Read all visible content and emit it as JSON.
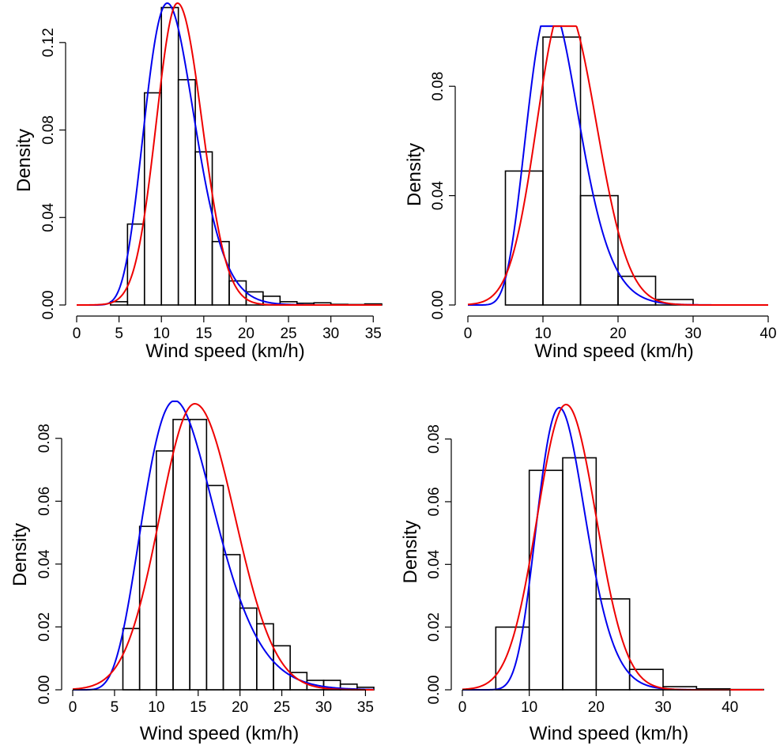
{
  "colors": {
    "curve_blue": "#0000ee",
    "curve_red": "#ee0000",
    "bars": "#000000"
  },
  "chart_data": [
    {
      "type": "bar",
      "xlabel": "Wind speed (km/h)",
      "ylabel": "Density",
      "xlim": [
        0,
        36
      ],
      "ylim": [
        0,
        0.138
      ],
      "xticks": [
        0,
        5,
        10,
        15,
        20,
        25,
        30,
        35
      ],
      "yticks": [
        0.0,
        0.04,
        0.08,
        0.12
      ],
      "ytick_labels": [
        "0.00",
        "0.04",
        "0.08",
        "0.12"
      ],
      "bin_edges": [
        4,
        6,
        8,
        10,
        12,
        14,
        16,
        18,
        20,
        22,
        24,
        26,
        28,
        30,
        32,
        34,
        36
      ],
      "values": [
        0.0015,
        0.037,
        0.097,
        0.136,
        0.103,
        0.07,
        0.029,
        0.011,
        0.006,
        0.004,
        0.0015,
        0.0008,
        0.001,
        0.0003,
        0.0002,
        0.0005
      ],
      "series": [
        {
          "name": "",
          "color": "#0000ee",
          "dist": "gamma",
          "mode": 10.7,
          "peak": 0.138,
          "shape": 14
        },
        {
          "name": "",
          "color": "#ee0000",
          "dist": "normal",
          "mode": 11.9,
          "peak": 0.138,
          "sd_left": 2.5,
          "sd_right": 2.9
        }
      ]
    },
    {
      "type": "bar",
      "xlabel": "Wind speed (km/h)",
      "ylabel": "Density",
      "xlim": [
        0,
        40
      ],
      "ylim": [
        0,
        0.1
      ],
      "xticks": [
        0,
        10,
        20,
        30,
        40
      ],
      "yticks": [
        0.0,
        0.04,
        0.08
      ],
      "ytick_labels": [
        "0.00",
        "0.04",
        "0.08"
      ],
      "bin_edges": [
        5,
        10,
        15,
        20,
        25,
        30
      ],
      "values": [
        0.049,
        0.098,
        0.04,
        0.0105,
        0.002
      ],
      "series": [
        {
          "name": "",
          "color": "#0000ee",
          "dist": "gamma",
          "mode": 11.0,
          "peak": 0.11,
          "shape": 11
        },
        {
          "name": "",
          "color": "#ee0000",
          "dist": "normal",
          "mode": 12.8,
          "peak": 0.11,
          "sd_left": 3.6,
          "sd_right": 4.3
        }
      ]
    },
    {
      "type": "bar",
      "xlabel": "Wind speed (km/h)",
      "ylabel": "Density",
      "xlim": [
        0,
        36
      ],
      "ylim": [
        0,
        0.09
      ],
      "xticks": [
        0,
        5,
        10,
        15,
        20,
        25,
        30,
        35
      ],
      "yticks": [
        0.0,
        0.02,
        0.04,
        0.06,
        0.08
      ],
      "ytick_labels": [
        "0.00",
        "0.02",
        "0.04",
        "0.06",
        "0.08"
      ],
      "bin_edges": [
        6,
        8,
        10,
        12,
        14,
        16,
        18,
        20,
        22,
        24,
        26,
        28,
        30,
        32,
        34,
        36
      ],
      "values": [
        0.0195,
        0.052,
        0.076,
        0.086,
        0.086,
        0.065,
        0.043,
        0.026,
        0.021,
        0.014,
        0.0055,
        0.003,
        0.003,
        0.0018,
        0.0008
      ],
      "series": [
        {
          "name": "",
          "color": "#0000ee",
          "dist": "gamma",
          "mode": 12.2,
          "peak": 0.092,
          "shape": 9
        },
        {
          "name": "",
          "color": "#ee0000",
          "dist": "normal",
          "mode": 14.6,
          "peak": 0.091,
          "sd_left": 4.2,
          "sd_right": 4.8
        }
      ]
    },
    {
      "type": "bar",
      "xlabel": "Wind speed (km/h)",
      "ylabel": "Density",
      "xlim": [
        0,
        45
      ],
      "ylim": [
        0,
        0.092
      ],
      "xticks": [
        0,
        10,
        20,
        30,
        40
      ],
      "yticks": [
        0.0,
        0.02,
        0.04,
        0.06,
        0.08
      ],
      "ytick_labels": [
        "0.00",
        "0.02",
        "0.04",
        "0.06",
        "0.08"
      ],
      "bin_edges": [
        5,
        10,
        15,
        20,
        25,
        30,
        35,
        40,
        45
      ],
      "values": [
        0.02,
        0.07,
        0.074,
        0.029,
        0.0065,
        0.001,
        0.0003,
        0.0001
      ],
      "series": [
        {
          "name": "",
          "color": "#0000ee",
          "dist": "gamma",
          "mode": 14.5,
          "peak": 0.09,
          "shape": 17
        },
        {
          "name": "",
          "color": "#ee0000",
          "dist": "normal",
          "mode": 15.5,
          "peak": 0.091,
          "sd_left": 4.3,
          "sd_right": 4.5
        }
      ]
    }
  ]
}
